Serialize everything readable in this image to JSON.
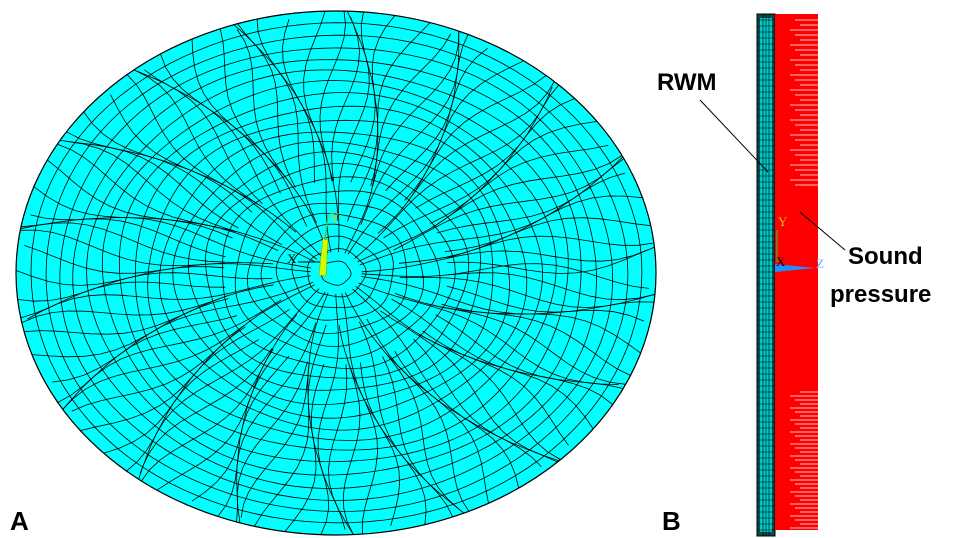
{
  "panel_a": {
    "label": "A",
    "triad": {
      "y": "Y",
      "x": "X"
    }
  },
  "panel_b": {
    "label": "B",
    "rwm": "RWM",
    "sound_pressure": [
      "Sound",
      "pressure"
    ],
    "triad": {
      "y": "Y",
      "x": "X",
      "z": "Z"
    }
  }
}
